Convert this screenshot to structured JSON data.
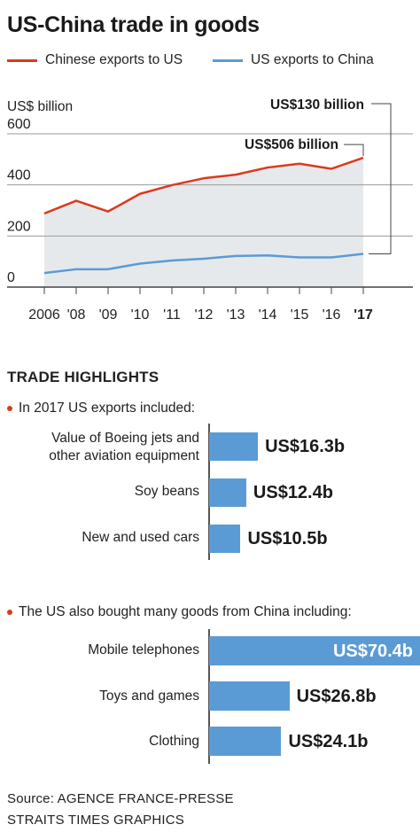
{
  "title": "US-China trade in goods",
  "legend": [
    {
      "label": "Chinese exports to US",
      "color": "#d83b1f"
    },
    {
      "label": "US exports to China",
      "color": "#5b9bd5"
    }
  ],
  "chart_data": [
    {
      "type": "line",
      "ylabel": "US$ billion",
      "ylim": [
        0,
        640
      ],
      "yticks": [
        "0",
        "200",
        "400",
        "600"
      ],
      "x": [
        "2006",
        "'08",
        "'09",
        "'10",
        "'11",
        "'12",
        "'13",
        "'14",
        "'15",
        "'16",
        "'17"
      ],
      "x_tick_labels": [
        "2006",
        "'08",
        "'09",
        "'10",
        "'11",
        "'12",
        "'13",
        "'14",
        "'15",
        "'16",
        "'17"
      ],
      "grid": true,
      "area_fill": "#e6e9ec",
      "series": [
        {
          "name": "Chinese exports to US",
          "color": "#d83b1f",
          "values": [
            288,
            338,
            296,
            365,
            399,
            426,
            440,
            468,
            483,
            463,
            506
          ]
        },
        {
          "name": "US exports to China",
          "color": "#5b9bd5",
          "values": [
            55,
            70,
            70,
            92,
            104,
            111,
            122,
            124,
            116,
            116,
            130
          ]
        }
      ],
      "annotations": [
        {
          "text": "US$506 billion",
          "series": "Chinese exports to US"
        },
        {
          "text": "US$130 billion",
          "series": "US exports to China"
        }
      ]
    },
    {
      "type": "bar",
      "orientation": "horizontal",
      "categories": [
        "Value of Boeing jets and other aviation equipment",
        "Soy beans",
        "New and used cars"
      ],
      "values": [
        16.3,
        12.4,
        10.5
      ],
      "value_labels": [
        "US$16.3b",
        "US$12.4b",
        "US$10.5b"
      ],
      "color": "#5b9bd5"
    },
    {
      "type": "bar",
      "orientation": "horizontal",
      "categories": [
        "Mobile telephones",
        "Toys and games",
        "Clothing"
      ],
      "values": [
        70.4,
        26.8,
        24.1
      ],
      "value_labels": [
        "US$70.4b",
        "US$26.8b",
        "US$24.1b"
      ],
      "color": "#5b9bd5"
    }
  ],
  "highlights": {
    "heading": "TRADE HIGHLIGHTS",
    "bullet_color": "#d83b1f",
    "exports_intro": "In 2017 US exports included:",
    "exports_labels": [
      "Value of Boeing jets and",
      "other aviation equipment",
      "Soy beans",
      "New and used cars"
    ],
    "imports_intro": "The US also bought many goods from China including:"
  },
  "source": [
    "Source: AGENCE FRANCE-PRESSE",
    "STRAITS TIMES GRAPHICS"
  ]
}
